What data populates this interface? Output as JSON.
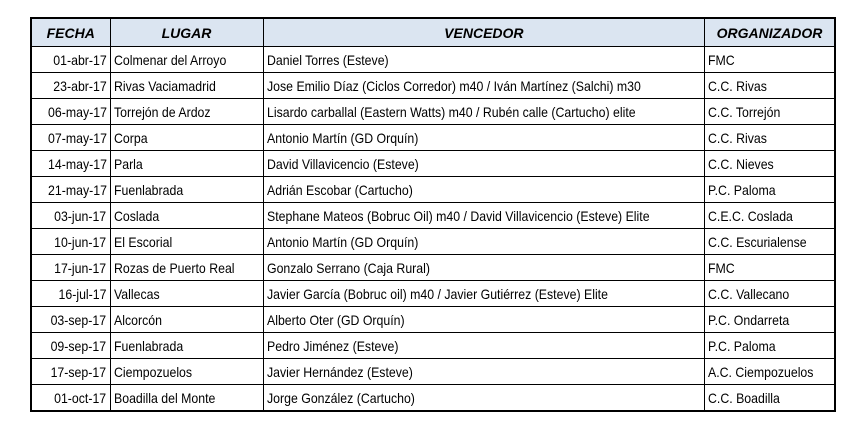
{
  "table": {
    "header": [
      "FECHA",
      "LUGAR",
      "VENCEDOR",
      "ORGANIZADOR"
    ],
    "rows": [
      [
        "01-abr-17",
        "Colmenar del Arroyo",
        "Daniel Torres (Esteve)",
        "FMC"
      ],
      [
        "23-abr-17",
        "Rivas Vaciamadrid",
        "Jose Emilio Díaz (Ciclos Corredor) m40 / Iván Martínez (Salchi) m30",
        "C.C. Rivas"
      ],
      [
        "06-may-17",
        "Torrejón de Ardoz",
        "Lisardo carballal (Eastern Watts) m40 / Rubén calle (Cartucho) elite",
        "C.C. Torrejón"
      ],
      [
        "07-may-17",
        "Corpa",
        "Antonio Martín (GD Orquín)",
        "C.C. Rivas"
      ],
      [
        "14-may-17",
        "Parla",
        "David Villavicencio (Esteve)",
        "C.C. Nieves"
      ],
      [
        "21-may-17",
        "Fuenlabrada",
        "Adrián Escobar (Cartucho)",
        "P.C. Paloma"
      ],
      [
        "03-jun-17",
        "Coslada",
        "Stephane Mateos (Bobruc Oil) m40 / David Villavicencio (Esteve) Elite",
        "C.E.C. Coslada"
      ],
      [
        "10-jun-17",
        "El Escorial",
        "Antonio Martín (GD Orquín)",
        "C.C. Escurialense"
      ],
      [
        "17-jun-17",
        "Rozas de Puerto Real",
        "Gonzalo Serrano (Caja Rural)",
        "FMC"
      ],
      [
        "16-jul-17",
        "Vallecas",
        "Javier García (Bobruc oil) m40 / Javier Gutiérrez (Esteve) Elite",
        "C.C. Vallecano"
      ],
      [
        "03-sep-17",
        "Alcorcón",
        "Alberto Oter (GD Orquín)",
        "P.C. Ondarreta"
      ],
      [
        "09-sep-17",
        "Fuenlabrada",
        "Pedro Jiménez (Esteve)",
        "P.C. Paloma"
      ],
      [
        "17-sep-17",
        "Ciempozuelos",
        "Javier Hernández (Esteve)",
        "A.C. Ciempozuelos"
      ],
      [
        "01-oct-17",
        "Boadilla del Monte",
        "Jorge González (Cartucho)",
        "C.C. Boadilla"
      ]
    ]
  }
}
